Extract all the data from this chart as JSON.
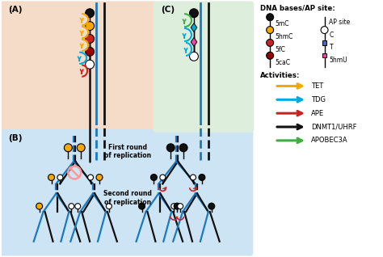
{
  "bg_a_color": "#f5dcc8",
  "bg_b_color": "#cde4f5",
  "bg_c_color": "#ddeedd",
  "panel_bg": "#ffffff",
  "blue_strand": "#1a7abf",
  "black_strand": "#111111",
  "base_5mC": "#111111",
  "base_5hmC": "#f5a800",
  "base_5fC": "#cc2222",
  "base_5caC": "#990000",
  "base_white": "#ffffff",
  "base_T": "#4466cc",
  "base_5hmU": "#ee44aa",
  "arrow_TET": "#f5a800",
  "arrow_TDG": "#00aadd",
  "arrow_APE": "#cc2222",
  "arrow_DNMT": "#111111",
  "arrow_APOBEC": "#44aa44",
  "legend_title_dna": "DNA bases/AP site:",
  "legend_title_act": "Activities:",
  "act_labels": [
    "TET",
    "TDG",
    "APE",
    "DNMT1/UHRF",
    "APOBEC3A"
  ],
  "act_colors": [
    "#f5a800",
    "#00aadd",
    "#cc2222",
    "#111111",
    "#44aa44"
  ],
  "panel_labels": [
    "(A)",
    "(B)",
    "(C)"
  ]
}
